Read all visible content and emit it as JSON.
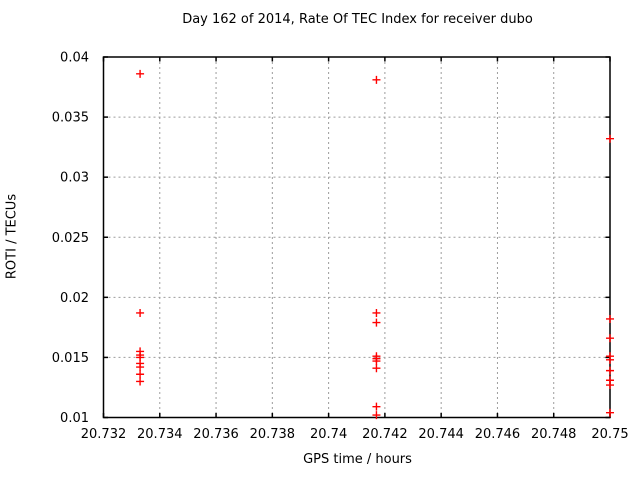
{
  "chart_data": {
    "type": "scatter",
    "title": "Day 162 of 2014, Rate Of TEC Index for receiver dubo",
    "xlabel": "GPS time / hours",
    "ylabel": "ROTI / TECUs",
    "xlim": [
      20.732,
      20.75
    ],
    "ylim": [
      0.01,
      0.04
    ],
    "grid": true,
    "legend_position": "none",
    "x_ticks": {
      "values": [
        20.732,
        20.734,
        20.736,
        20.738,
        20.74,
        20.742,
        20.744,
        20.746,
        20.748,
        20.75
      ],
      "labels": [
        "20.732",
        "20.734",
        "20.736",
        "20.738",
        "20.74",
        "20.742",
        "20.744",
        "20.746",
        "20.748",
        "20.75"
      ]
    },
    "y_ticks": {
      "values": [
        0.01,
        0.015,
        0.02,
        0.025,
        0.03,
        0.035,
        0.04
      ],
      "labels": [
        "0.01",
        "0.015",
        "0.02",
        "0.025",
        "0.03",
        "0.035",
        "0.04"
      ]
    },
    "colors": {
      "marker": "#ff0000",
      "grid": "#9c9c9c",
      "border": "#000000",
      "background": "#ffffff"
    },
    "marker_symbol": "plus",
    "series": [
      {
        "name": "ROTI",
        "points": [
          [
            20.7333,
            0.0386
          ],
          [
            20.7333,
            0.0187
          ],
          [
            20.7333,
            0.0155
          ],
          [
            20.7333,
            0.0152
          ],
          [
            20.7333,
            0.015
          ],
          [
            20.7333,
            0.0145
          ],
          [
            20.7333,
            0.0142
          ],
          [
            20.7333,
            0.0136
          ],
          [
            20.7333,
            0.013
          ],
          [
            20.7417,
            0.0381
          ],
          [
            20.7417,
            0.0187
          ],
          [
            20.7417,
            0.0179
          ],
          [
            20.7417,
            0.0151
          ],
          [
            20.7417,
            0.0149
          ],
          [
            20.7417,
            0.0147
          ],
          [
            20.7417,
            0.0141
          ],
          [
            20.7417,
            0.0109
          ],
          [
            20.7417,
            0.0102
          ],
          [
            20.75,
            0.0332
          ],
          [
            20.75,
            0.0182
          ],
          [
            20.75,
            0.0166
          ],
          [
            20.75,
            0.0151
          ],
          [
            20.75,
            0.0148
          ],
          [
            20.75,
            0.0139
          ],
          [
            20.75,
            0.0131
          ],
          [
            20.75,
            0.0127
          ],
          [
            20.75,
            0.0104
          ]
        ]
      }
    ]
  }
}
